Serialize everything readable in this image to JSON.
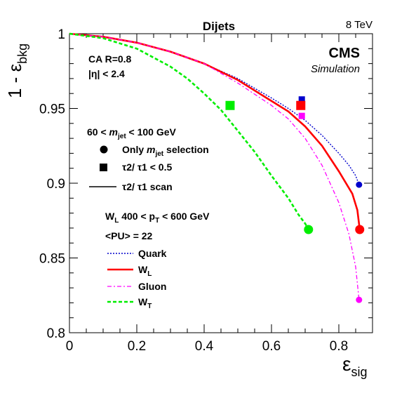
{
  "chart_data": {
    "type": "line",
    "title": "Dijets",
    "energy_label": "8 TeV",
    "experiment": "CMS",
    "experiment_sub": "Simulation",
    "xlabel": {
      "main": "ε",
      "sub": "sig"
    },
    "ylabel": {
      "main": "1 - ε",
      "sub": "bkg"
    },
    "xlim": [
      0,
      0.9
    ],
    "ylim": [
      0.8,
      1.0
    ],
    "xticks": [
      0,
      0.2,
      0.4,
      0.6,
      0.8
    ],
    "xtick_labels": [
      "0",
      "0.2",
      "0.4",
      "0.6",
      "0.8"
    ],
    "yticks": [
      0.8,
      0.85,
      0.9,
      0.95,
      1.0
    ],
    "ytick_labels": [
      "0.8",
      "0.85",
      "0.9",
      "0.95",
      "1"
    ],
    "grid": false,
    "annotations": {
      "algo_line1": "CA R=0.8",
      "algo_line2": "|η| < 2.4",
      "mass_window": {
        "pre": "60 <",
        "m": "m",
        "msub": "jet",
        "post": "< 100 GeV"
      },
      "pt_window": {
        "pre": "W",
        "wsub": "L",
        "mid": "400 < p",
        "ptsub": "T",
        "post": "< 600 GeV"
      },
      "pileup": "<PU> = 22"
    },
    "marker_legend": [
      {
        "symbol": "circle",
        "pre": "Only",
        "m": "m",
        "msub": "jet",
        "post": "selection"
      },
      {
        "symbol": "square",
        "text": "τ2/ τ1 < 0.5"
      },
      {
        "symbol": "line",
        "text": "τ2/ τ1 scan"
      }
    ],
    "series": [
      {
        "name": "Quark",
        "name_sub": "",
        "color": "#0000cc",
        "style": "dotted",
        "x": [
          0.0,
          0.1,
          0.2,
          0.3,
          0.4,
          0.5,
          0.6,
          0.65,
          0.7,
          0.75,
          0.8,
          0.83,
          0.85,
          0.86
        ],
        "y": [
          1.0,
          0.998,
          0.994,
          0.988,
          0.98,
          0.97,
          0.957,
          0.95,
          0.942,
          0.932,
          0.92,
          0.912,
          0.905,
          0.899
        ],
        "circle": {
          "x": 0.86,
          "y": 0.899
        },
        "square": {
          "x": 0.69,
          "y": 0.956
        }
      },
      {
        "name": "W",
        "name_sub": "L",
        "color": "#ff0000",
        "style": "solid",
        "x": [
          0.0,
          0.1,
          0.2,
          0.3,
          0.4,
          0.5,
          0.6,
          0.65,
          0.7,
          0.75,
          0.8,
          0.84,
          0.855,
          0.862
        ],
        "y": [
          1.0,
          0.998,
          0.994,
          0.988,
          0.98,
          0.969,
          0.955,
          0.948,
          0.938,
          0.925,
          0.908,
          0.893,
          0.882,
          0.869
        ],
        "circle": {
          "x": 0.862,
          "y": 0.869
        },
        "square": {
          "x": 0.687,
          "y": 0.952
        }
      },
      {
        "name": "Gluon",
        "name_sub": "",
        "color": "#ff00ff",
        "style": "dashdot",
        "x": [
          0.0,
          0.1,
          0.2,
          0.3,
          0.4,
          0.5,
          0.6,
          0.65,
          0.7,
          0.75,
          0.8,
          0.83,
          0.85,
          0.86
        ],
        "y": [
          1.0,
          0.998,
          0.994,
          0.988,
          0.98,
          0.967,
          0.952,
          0.943,
          0.93,
          0.912,
          0.887,
          0.866,
          0.844,
          0.822
        ],
        "circle": {
          "x": 0.86,
          "y": 0.822
        },
        "square": {
          "x": 0.69,
          "y": 0.945
        }
      },
      {
        "name": "W",
        "name_sub": "T",
        "color": "#00ee00",
        "style": "dashed",
        "x": [
          0.0,
          0.1,
          0.2,
          0.3,
          0.35,
          0.4,
          0.45,
          0.5,
          0.55,
          0.6,
          0.65,
          0.68,
          0.7,
          0.71
        ],
        "y": [
          1.0,
          0.997,
          0.99,
          0.978,
          0.97,
          0.96,
          0.949,
          0.935,
          0.921,
          0.905,
          0.89,
          0.879,
          0.873,
          0.869
        ],
        "circle": {
          "x": 0.71,
          "y": 0.869
        },
        "square": {
          "x": 0.477,
          "y": 0.952
        }
      }
    ]
  }
}
